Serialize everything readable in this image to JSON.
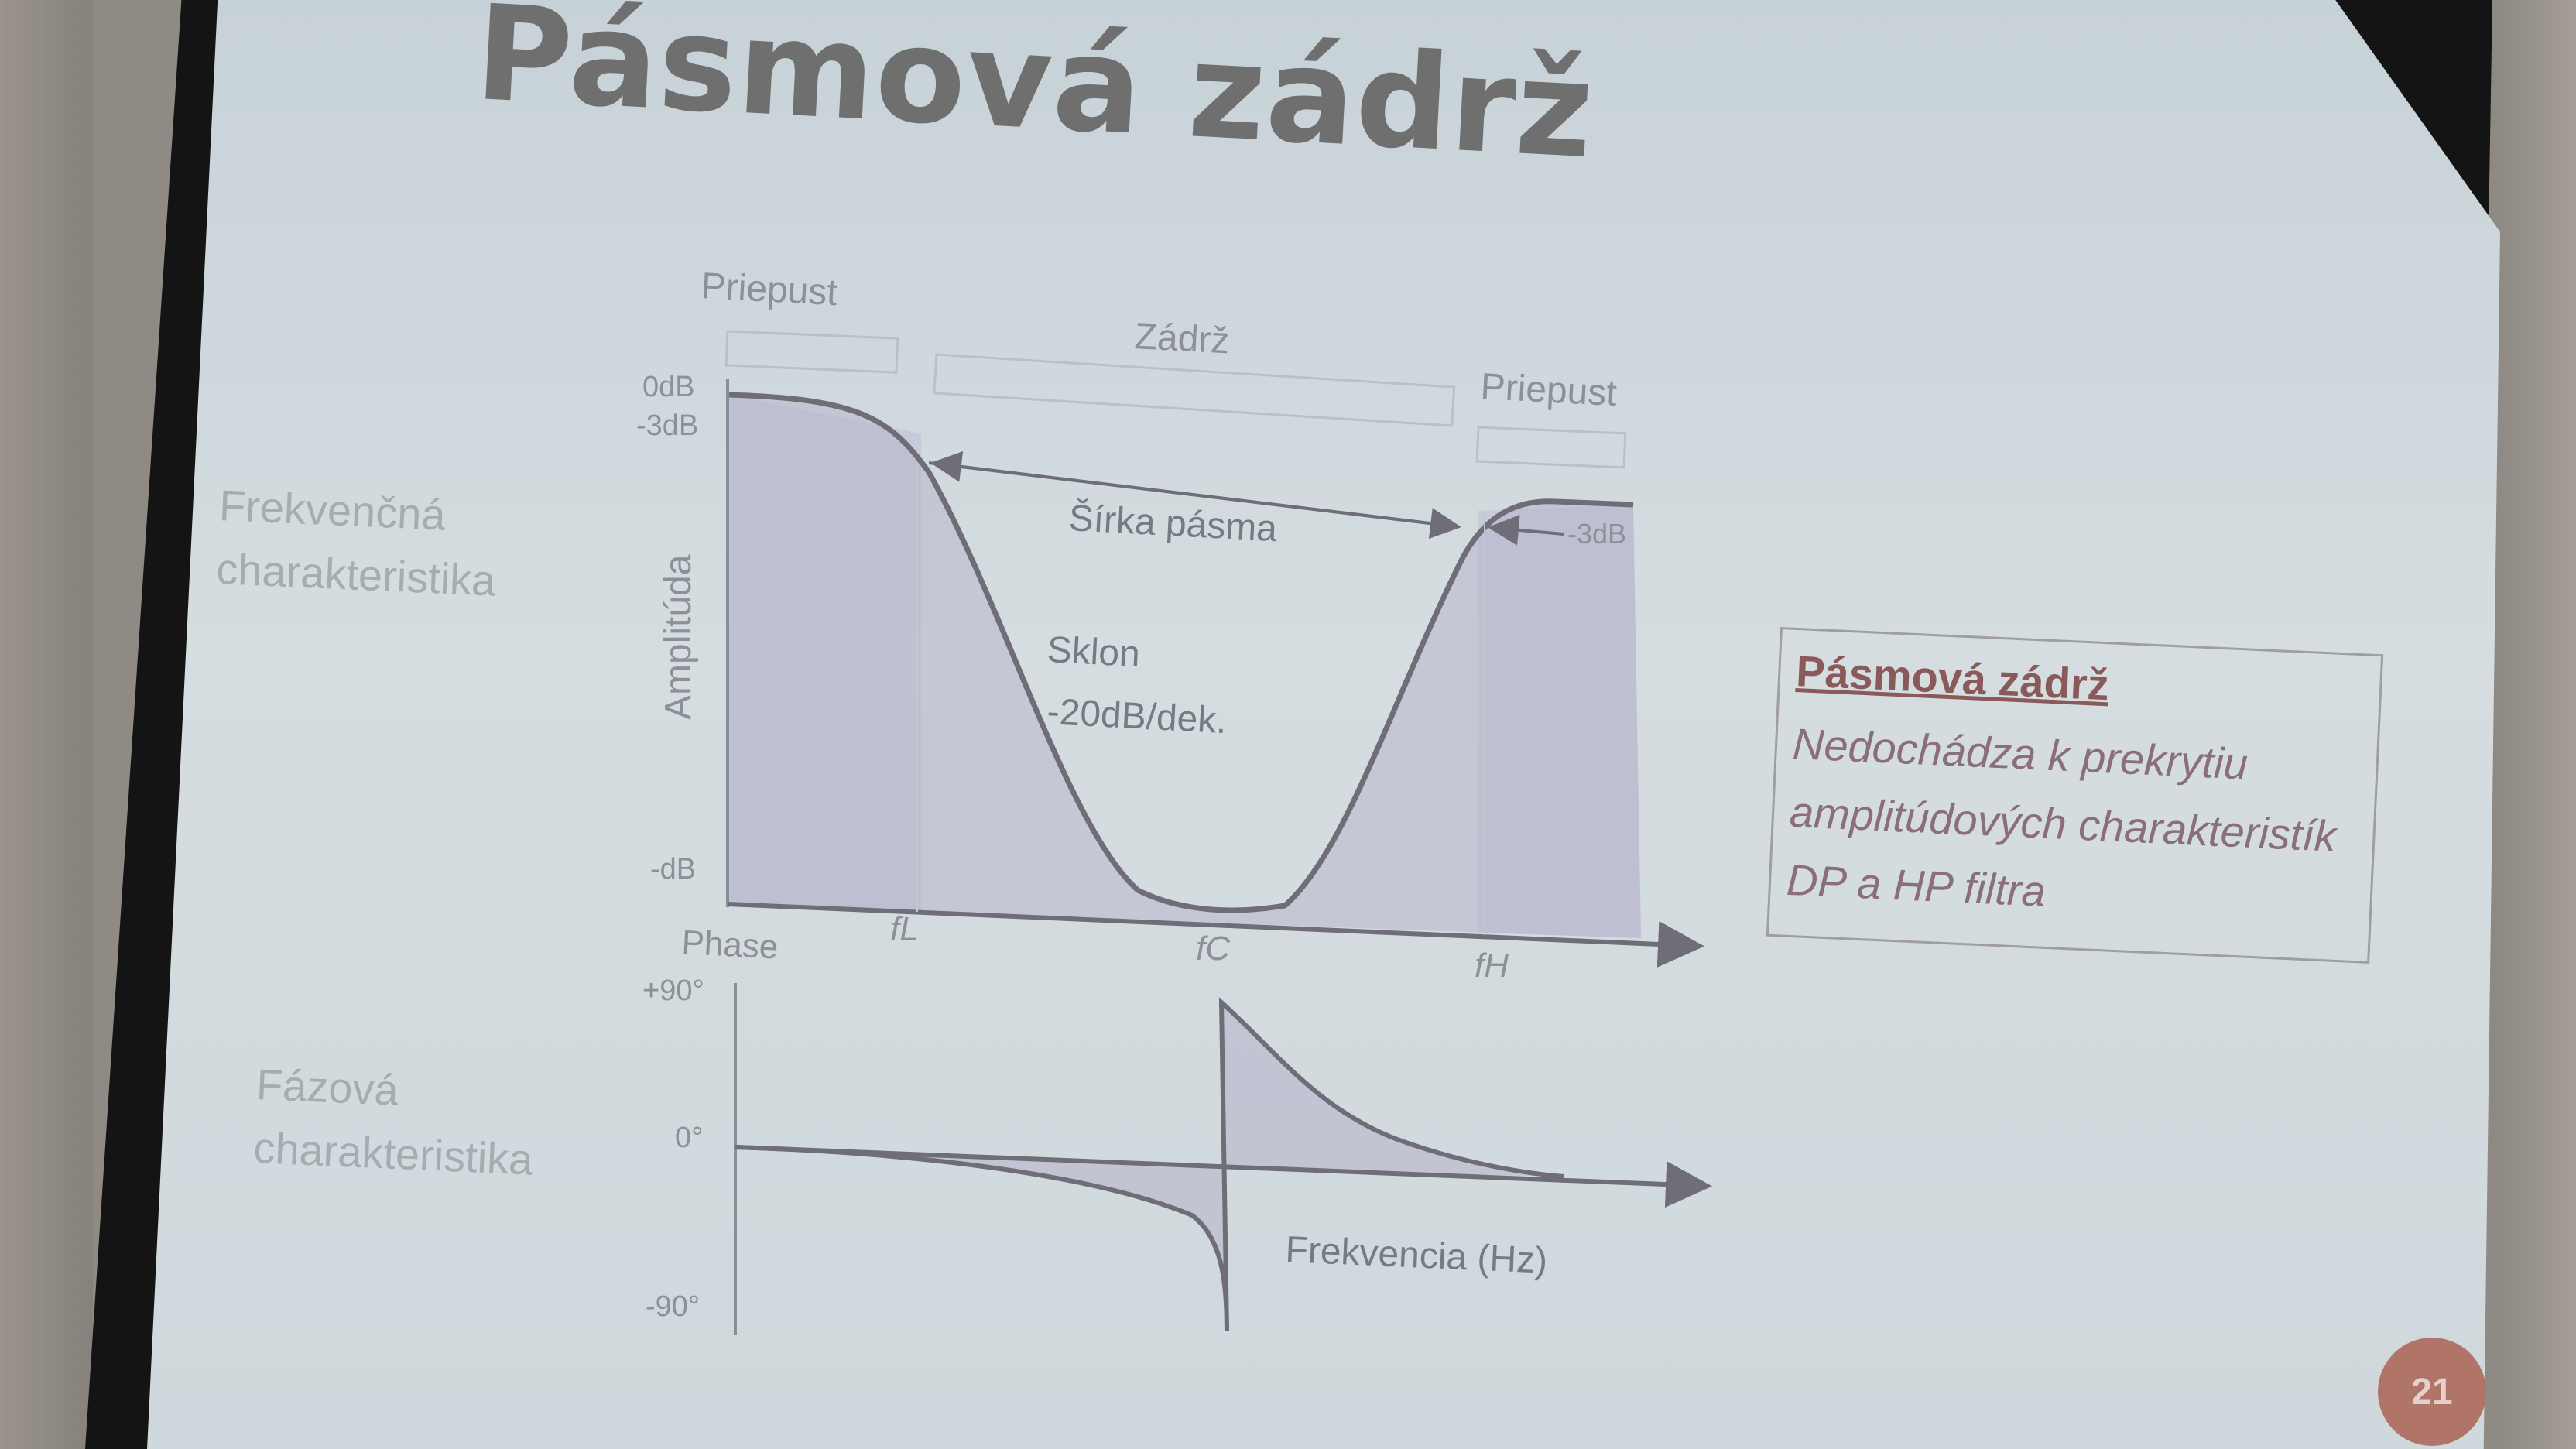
{
  "slide": {
    "title": "Pásmová zádrž",
    "page_number": "21"
  },
  "labels": {
    "frequency_response": "Frekvenčná\ncharakteristika",
    "phase_response": "Fázová\ncharakteristika"
  },
  "diagram": {
    "passband_left": "Priepust",
    "stopband": "Zádrž",
    "passband_right": "Priepust",
    "bandwidth": "Šírka pásma",
    "slope_line1": "Sklon",
    "slope_line2": "-20dB/dek.",
    "amplitude_axis": "Amplitúda",
    "tick_0db": "0dB",
    "tick_m3db": "-3dB",
    "tick_mdb": "-dB",
    "marker_m3db": "-3dB",
    "f_low": "fL",
    "f_center": "fC",
    "f_high": "fH",
    "phase_axis": "Phase",
    "tick_p90": "+90°",
    "tick_0deg": "0°",
    "tick_m90": "-90°",
    "frequency_axis": "Frekvencia (Hz)"
  },
  "info_box": {
    "title": "Pásmová zádrž",
    "text": "Nedochádza k prekrytiu\namplitúdových charakteristík\nDP a HP filtra"
  },
  "colors": {
    "curve": "#6f6e78",
    "fill": "#b8b6cb",
    "slide": "#cfd8dc"
  }
}
